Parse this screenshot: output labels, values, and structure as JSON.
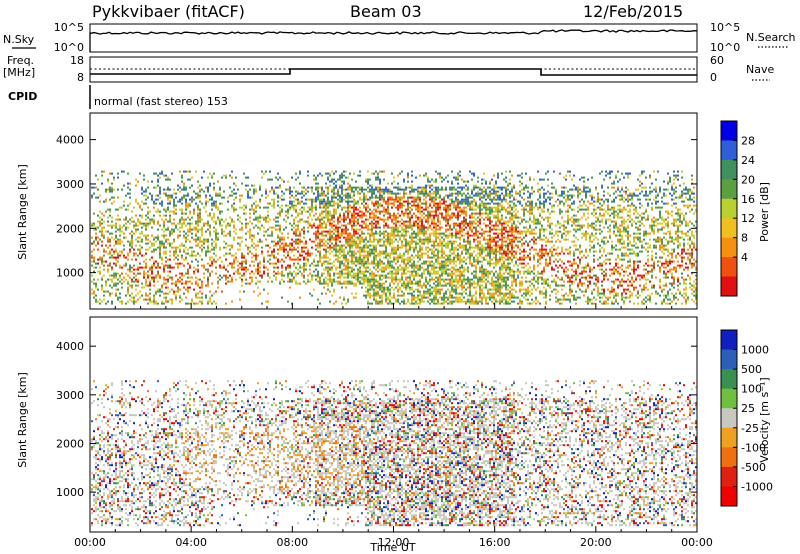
{
  "header": {
    "station": "Pykkvibaer (fitACF)",
    "beam": "Beam 03",
    "date": "12/Feb/2015"
  },
  "top_panels": {
    "nsky_label": "N.Sky",
    "nsky_ticks": [
      "10^5",
      "10^0"
    ],
    "nsearch_label": "N.Search",
    "nsearch_ticks": [
      "10^5",
      "10^0"
    ],
    "freq_label": "Freq.",
    "freq_unit": "[MHz]",
    "freq_ticks": [
      "18",
      "8"
    ],
    "nave_label": "Nave",
    "nave_ticks": [
      "60",
      "0"
    ],
    "cpid_label": "CPID",
    "cpid_text": "normal (fast stereo) 153"
  },
  "chart_data": [
    {
      "type": "heatmap",
      "panel": "power",
      "ylabel": "Slant Range [km]",
      "ylim": [
        180,
        4600
      ],
      "y_ticks": [
        1000,
        2000,
        3000,
        4000
      ],
      "xlim": [
        0,
        24
      ],
      "x_tick_labels": [
        "00:00",
        "04:00",
        "08:00",
        "12:00",
        "16:00",
        "20:00",
        "00:00"
      ],
      "colorbar_label": "Power [dB]",
      "colorbar_ticks": [
        "28",
        "24",
        "20",
        "16",
        "12",
        "8",
        "4"
      ],
      "colorbar_colors": [
        "#0000e6",
        "#2f5fd8",
        "#3f8f5f",
        "#5aa040",
        "#b8d030",
        "#f0c020",
        "#f59010",
        "#f05010",
        "#e01010"
      ],
      "scatter_range_km": [
        300,
        3300
      ]
    },
    {
      "type": "heatmap",
      "panel": "velocity",
      "ylabel": "Slant Range [km]",
      "ylim": [
        180,
        4600
      ],
      "y_ticks": [
        1000,
        2000,
        3000,
        4000
      ],
      "xlim": [
        0,
        24
      ],
      "x_tick_labels": [
        "00:00",
        "04:00",
        "08:00",
        "12:00",
        "16:00",
        "20:00",
        "00:00"
      ],
      "xlabel": "Time UT",
      "colorbar_label": "Velocity [m s⁻¹]",
      "colorbar_ticks": [
        "1000",
        "500",
        "100",
        "25",
        "-25",
        "-100",
        "-500",
        "-1000"
      ],
      "colorbar_colors": [
        "#1020c0",
        "#2a60b8",
        "#3a9050",
        "#70c040",
        "#c8c8c0",
        "#f0a020",
        "#f07010",
        "#e02010",
        "#f00000"
      ],
      "scatter_range_km": [
        300,
        3300
      ]
    }
  ],
  "colors": {
    "axis": "#000000",
    "ground_scatter": "#c8c8c0",
    "background": "#ffffff"
  }
}
